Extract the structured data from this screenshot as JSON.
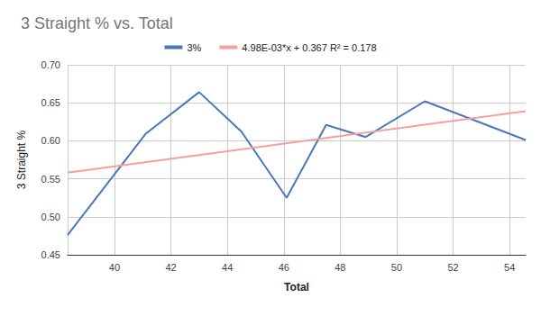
{
  "chart_data": {
    "type": "line",
    "title": "3 Straight % vs. Total",
    "x_label": "Total",
    "y_label": "3 Straight %",
    "series": [
      {
        "name": "3%",
        "type": "line",
        "color": "#4a78b5",
        "x": [
          38.34,
          41.1,
          43.0,
          44.5,
          46.1,
          47.5,
          48.9,
          51.0,
          54.57
        ],
        "values": [
          0.476,
          0.609,
          0.664,
          0.612,
          0.525,
          0.621,
          0.605,
          0.652,
          0.601
        ]
      },
      {
        "name": "4.98E-03*x + 0.367 R² = 0.178",
        "type": "line",
        "color": "#f4a09c",
        "x": [
          38.34,
          54.57
        ],
        "values": [
          0.558,
          0.639
        ]
      }
    ],
    "xlim": [
      38.34,
      54.57
    ],
    "xticks": [
      40,
      42,
      44,
      46,
      48,
      50,
      52,
      54
    ],
    "ylim": [
      0.45,
      0.7
    ],
    "yticks": [
      0.45,
      {
        "value": 0.5,
        "label": "0.50"
      },
      0.55,
      {
        "value": 0.6,
        "label": "0.60"
      },
      0.65,
      {
        "value": 0.7,
        "label": "0.70"
      }
    ],
    "grid": true,
    "legend": "top"
  }
}
